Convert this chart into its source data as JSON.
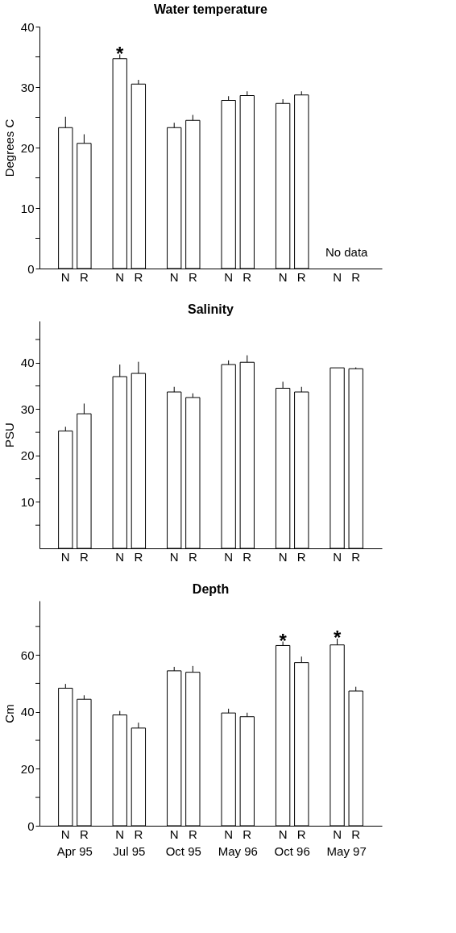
{
  "chart_data": [
    {
      "type": "bar",
      "title": "Water temperature",
      "ylabel": "Degrees C",
      "categories": [
        "Apr 95",
        "Jul 95",
        "Oct 95",
        "May 96",
        "Oct 96",
        "May 97"
      ],
      "tick_labels": "y",
      "ylim": [
        0,
        40
      ],
      "yticks": [
        0,
        {
          "value": 5,
          "label": null
        },
        10,
        {
          "value": 15,
          "label": null
        },
        20,
        {
          "value": 25,
          "label": null
        },
        30,
        {
          "value": 35,
          "label": null
        },
        40
      ],
      "grid": false,
      "series": [
        {
          "name": "N",
          "color": "#ffffff",
          "values": [
            23.3,
            34.7,
            23.3,
            27.8,
            27.3,
            null
          ],
          "errors": [
            [
              23.3,
              25.1
            ],
            [
              34.7,
              35.4
            ],
            [
              23.3,
              24.1
            ],
            [
              27.8,
              28.5
            ],
            [
              27.3,
              28.0
            ],
            null
          ]
        },
        {
          "name": "R",
          "color": "#ffffff",
          "values": [
            20.7,
            30.5,
            24.5,
            28.6,
            28.7,
            null
          ],
          "errors": [
            [
              20.7,
              22.2
            ],
            [
              30.5,
              31.2
            ],
            [
              24.5,
              25.4
            ],
            [
              28.6,
              29.3
            ],
            [
              28.7,
              29.3
            ],
            null
          ]
        }
      ],
      "annotations": [
        {
          "text": "*",
          "x": "Jul 95",
          "y": 34.7
        },
        "No data"
      ]
    },
    {
      "type": "bar",
      "title": "Salinity",
      "ylabel": "PSU",
      "categories": [
        "Apr 95",
        "Jul 95",
        "Oct 95",
        "May 96",
        "Oct 96",
        "May 97"
      ],
      "tick_labels": "y",
      "ylim": [
        0,
        49
      ],
      "yticks": [
        {
          "value": 5,
          "label": null
        },
        10,
        {
          "value": 15,
          "label": null
        },
        20,
        {
          "value": 25,
          "label": null
        },
        30,
        {
          "value": 35,
          "label": null
        },
        40,
        {
          "value": 45,
          "label": null
        }
      ],
      "grid": false,
      "series": [
        {
          "name": "N",
          "color": "#ffffff",
          "values": [
            25.3,
            37.0,
            33.7,
            39.6,
            34.5,
            38.9
          ],
          "errors": [
            [
              25.3,
              26.2
            ],
            [
              37.0,
              39.6
            ],
            [
              33.7,
              34.8
            ],
            [
              39.6,
              40.5
            ],
            [
              34.5,
              35.9
            ],
            null
          ]
        },
        {
          "name": "R",
          "color": "#ffffff",
          "values": [
            29.0,
            37.7,
            32.5,
            40.1,
            33.7,
            38.7
          ],
          "errors": [
            [
              29.0,
              31.2
            ],
            [
              37.7,
              40.2
            ],
            [
              32.5,
              33.4
            ],
            [
              40.1,
              41.6
            ],
            [
              33.7,
              34.8
            ],
            [
              38.7,
              39.0
            ]
          ]
        }
      ]
    },
    {
      "type": "bar",
      "title": "Depth",
      "ylabel": "Cm",
      "categories": [
        "Apr 95",
        "Jul 95",
        "Oct 95",
        "May 96",
        "Oct 96",
        "May 97"
      ],
      "ylim": [
        0,
        79
      ],
      "yticks": [
        0,
        {
          "value": 10,
          "label": null
        },
        20,
        {
          "value": 30,
          "label": null
        },
        40,
        {
          "value": 50,
          "label": null
        },
        60,
        {
          "value": 70,
          "label": null
        }
      ],
      "grid": false,
      "series": [
        {
          "name": "N",
          "color": "#ffffff",
          "values": [
            48.3,
            38.9,
            54.4,
            39.6,
            63.3,
            63.5
          ],
          "errors": [
            [
              48.3,
              49.8
            ],
            [
              38.9,
              40.3
            ],
            [
              54.4,
              55.8
            ],
            [
              39.6,
              41.1
            ],
            [
              63.3,
              64.7
            ],
            [
              63.5,
              65.7
            ]
          ]
        },
        {
          "name": "R",
          "color": "#ffffff",
          "values": [
            44.4,
            34.3,
            53.9,
            38.3,
            57.3,
            47.3
          ],
          "errors": [
            [
              44.4,
              45.8
            ],
            [
              34.3,
              36.2
            ],
            [
              53.9,
              56.1
            ],
            [
              38.3,
              39.7
            ],
            [
              57.3,
              59.4
            ],
            [
              47.3,
              48.8
            ]
          ]
        }
      ],
      "annotations": [
        {
          "text": "*",
          "x": "Oct 96",
          "y": 63.3
        },
        {
          "text": "*",
          "x": "May 97",
          "y": 63.5
        }
      ]
    }
  ]
}
